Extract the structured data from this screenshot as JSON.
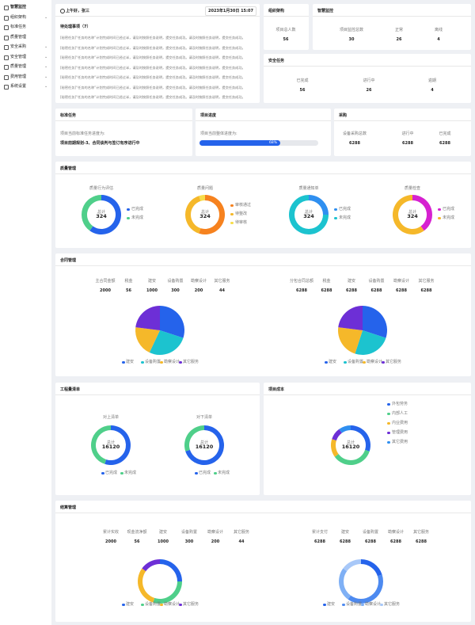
{
  "sidebar": [
    "智慧监控",
    "组织架构",
    "标准任务",
    "质量管理",
    "安全采购",
    "安全管理",
    "质量管理",
    "费用管理",
    "系统设置"
  ],
  "greeting": {
    "user": "上午好，张三",
    "datetime": "2023年1月30日 15:07",
    "todo_title": "待处理事项（7）",
    "todos": [
      "[秘密任务]“任务的名称”计划完成时间已经过半，请及时按照任务说明，提交任务成功。请及时按照任务说明，提交任务成功。",
      "[秘密任务]“任务的名称”计划完成时间已经过半，请及时按照任务说明，提交任务成功。请及时按照任务说明，提交任务成功。",
      "[秘密任务]“任务的名称”计划完成时间已经过半，请及时按照任务说明，提交任务成功。请及时按照任务说明，提交任务成功。",
      "[秘密任务]“任务的名称”计划完成时间已经过半，请及时按照任务说明，提交任务成功。请及时按照任务说明，提交任务成功。",
      "[秘密任务]“任务的名称”计划完成时间已经过半，请及时按照任务说明，提交任务成功。请及时按照任务说明，提交任务成功。",
      "[秘密任务]“任务的名称”计划完成时间已经过半，请及时按照任务说明，提交任务成功。请及时按照任务说明，提交任务成功。",
      "[秘密任务]“任务的名称”计划完成时间已经过半，请及时按照任务说明，提交任务成功。请及时按照任务说明，提交任务成功。"
    ]
  },
  "org": {
    "title": "组织架构",
    "stats": [
      {
        "label": "项目总人数",
        "value": 56
      }
    ]
  },
  "monitor": {
    "title": "智慧监控",
    "stats": [
      {
        "label": "项目监控总数",
        "value": 30
      },
      {
        "label": "正常",
        "value": 26
      },
      {
        "label": "离线",
        "value": 4
      }
    ]
  },
  "safety": {
    "title": "安全任务",
    "stats": [
      {
        "label": "已完成",
        "value": 56
      },
      {
        "label": "进行中",
        "value": 26
      },
      {
        "label": "逾期",
        "value": 4
      }
    ]
  },
  "standard": {
    "title": "标准任务",
    "text": "项目当前标准任务进度为:",
    "status": "项目前期规划-3、合同谈判与签订有序进行中"
  },
  "progress": {
    "title": "项目进度",
    "text": "项目当前整体进度为:",
    "value": 68,
    "value_label": "68%"
  },
  "purchase": {
    "title": "采购",
    "stats": [
      {
        "label": "设备采购总数",
        "value": 6288
      },
      {
        "label": "进行中",
        "value": 6288
      },
      {
        "label": "已完成",
        "value": 6288
      }
    ]
  },
  "quality": {
    "title": "质量管理",
    "charts": [
      {
        "type": "donut",
        "title": "质量行为评估",
        "center_label": "总计",
        "total": 324,
        "series": [
          {
            "name": "已完成",
            "color": "#2563eb",
            "value": 60
          },
          {
            "name": "未完成",
            "color": "#4fcf8a",
            "value": 40
          }
        ]
      },
      {
        "type": "donut",
        "title": "质量问题",
        "center_label": "总计",
        "total": 324,
        "series": [
          {
            "name": "审核通过",
            "color": "#f6821f",
            "value": 55
          },
          {
            "name": "待整改",
            "color": "#f5b82a",
            "value": 40
          },
          {
            "name": "待审核",
            "color": "#f7dd4a",
            "value": 5
          }
        ]
      },
      {
        "type": "donut",
        "title": "质量通知单",
        "center_label": "总计",
        "total": 324,
        "series": [
          {
            "name": "已完成",
            "color": "#2f8ff0",
            "value": 25
          },
          {
            "name": "未完成",
            "color": "#1cc3cf",
            "value": 75
          }
        ]
      },
      {
        "type": "donut",
        "title": "质量检查",
        "center_label": "总计",
        "total": 324,
        "series": [
          {
            "name": "已完成",
            "color": "#d621d0",
            "value": 40
          },
          {
            "name": "未完成",
            "color": "#f5b82a",
            "value": 60
          }
        ]
      }
    ]
  },
  "contract": {
    "title": "合同管理",
    "groups": [
      {
        "stats": [
          {
            "label": "主合同金额",
            "value": 2000
          },
          {
            "label": "税金",
            "value": 56
          },
          {
            "label": "建安",
            "value": 1000
          },
          {
            "label": "设备购置",
            "value": 300
          },
          {
            "label": "勘察设计",
            "value": 200
          },
          {
            "label": "其它服务",
            "value": 44
          }
        ],
        "chart": {
          "type": "pie",
          "series": [
            {
              "name": "建安",
              "color": "#2563eb",
              "value": 30
            },
            {
              "name": "设备购置",
              "color": "#1cc3cf",
              "value": 27
            },
            {
              "name": "勘察设计",
              "color": "#f5b82a",
              "value": 20
            },
            {
              "name": "其它服务",
              "color": "#6d2fd6",
              "value": 23
            }
          ]
        }
      },
      {
        "stats": [
          {
            "label": "分包合同总额",
            "value": 6288
          },
          {
            "label": "税金",
            "value": 6288
          },
          {
            "label": "建安",
            "value": 6288
          },
          {
            "label": "设备购置",
            "value": 6288
          },
          {
            "label": "勘察设计",
            "value": 6288
          },
          {
            "label": "其它服务",
            "value": 6288
          }
        ],
        "chart": {
          "type": "pie",
          "series": [
            {
              "name": "建安",
              "color": "#2563eb",
              "value": 30
            },
            {
              "name": "设备购置",
              "color": "#1cc3cf",
              "value": 25
            },
            {
              "name": "勘察设计",
              "color": "#f5b82a",
              "value": 22
            },
            {
              "name": "其它服务",
              "color": "#6d2fd6",
              "value": 23
            }
          ]
        }
      }
    ]
  },
  "bill": {
    "title": "工程量清单",
    "charts": [
      {
        "type": "donut",
        "title": "对上清单",
        "center_label": "总计",
        "total": 16120,
        "series": [
          {
            "name": "已完成",
            "color": "#2563eb",
            "value": 55
          },
          {
            "name": "未完成",
            "color": "#4fcf8a",
            "value": 45
          }
        ]
      },
      {
        "type": "donut",
        "title": "对下清单",
        "center_label": "总计",
        "total": 16120,
        "series": [
          {
            "name": "已完成",
            "color": "#2563eb",
            "value": 70
          },
          {
            "name": "未完成",
            "color": "#4fcf8a",
            "value": 30
          }
        ]
      }
    ]
  },
  "cost": {
    "title": "项目成本",
    "chart": {
      "type": "donut",
      "center_label": "总计",
      "total": 16120,
      "series": [
        {
          "name": "外包劳务",
          "color": "#2563eb",
          "value": 30
        },
        {
          "name": "内部人工",
          "color": "#4fcf8a",
          "value": 35
        },
        {
          "name": "内业费用",
          "color": "#f5b82a",
          "value": 15
        },
        {
          "name": "管理费用",
          "color": "#6d2fd6",
          "value": 10
        },
        {
          "name": "其它费用",
          "color": "#2f8ff0",
          "value": 10
        }
      ]
    }
  },
  "settlement": {
    "title": "结算管理",
    "groups": [
      {
        "stats": [
          {
            "label": "累计实收",
            "value": 2000
          },
          {
            "label": "现金流净额",
            "value": 56
          },
          {
            "label": "建安",
            "value": 1000
          },
          {
            "label": "设备购置",
            "value": 300
          },
          {
            "label": "勘察设计",
            "value": 200
          },
          {
            "label": "其它服务",
            "value": 44
          }
        ],
        "chart": {
          "type": "donut",
          "series": [
            {
              "name": "建安",
              "color": "#2563eb",
              "value": 25
            },
            {
              "name": "设备购置",
              "color": "#4fcf8a",
              "value": 30
            },
            {
              "name": "勘察设计",
              "color": "#f5b82a",
              "value": 30
            },
            {
              "name": "其它服务",
              "color": "#6d2fd6",
              "value": 15
            }
          ]
        }
      },
      {
        "stats": [
          {
            "label": "累计支付",
            "value": 6288
          },
          {
            "label": "建安",
            "value": 6288
          },
          {
            "label": "设备购置",
            "value": 6288
          },
          {
            "label": "勘察设计",
            "value": 6288
          },
          {
            "label": "其它服务",
            "value": 6288
          }
        ],
        "chart": {
          "type": "donut",
          "series": [
            {
              "name": "建安",
              "color": "#2563eb",
              "value": 20
            },
            {
              "name": "设备购置",
              "color": "#4d8af0",
              "value": 40
            },
            {
              "name": "勘察设计",
              "color": "#7fb0f5",
              "value": 25
            },
            {
              "name": "其它服务",
              "color": "#a8c8f8",
              "value": 15
            }
          ]
        }
      }
    ]
  }
}
